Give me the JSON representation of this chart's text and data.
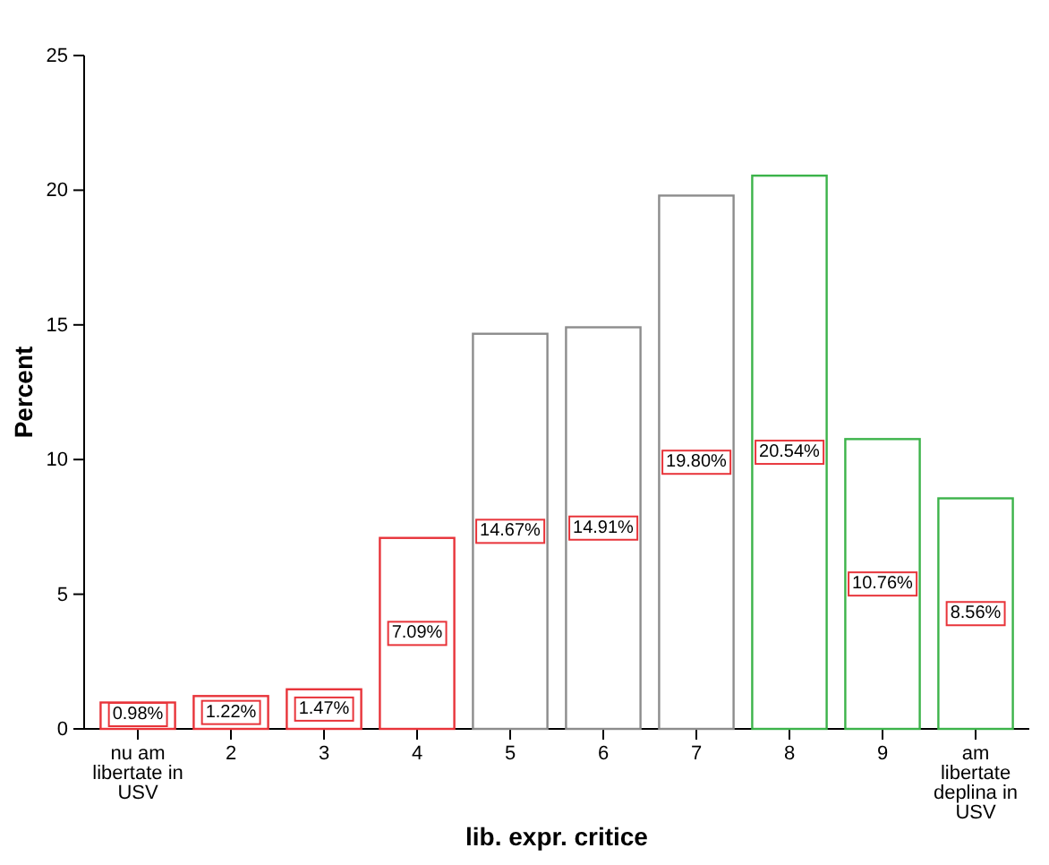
{
  "chart_data": {
    "type": "bar",
    "xlabel": "lib. expr. critice",
    "ylabel": "Percent",
    "categories": [
      "nu am libertate in USV",
      "2",
      "3",
      "4",
      "5",
      "6",
      "7",
      "8",
      "9",
      "am libertate deplina in USV"
    ],
    "values": [
      0.98,
      1.22,
      1.47,
      7.09,
      14.67,
      14.91,
      19.8,
      20.54,
      10.76,
      8.56
    ],
    "value_labels": [
      "0.98%",
      "1.22%",
      "1.47%",
      "7.09%",
      "14.67%",
      "14.91%",
      "19.80%",
      "20.54%",
      "10.76%",
      "8.56%"
    ],
    "colors": [
      "#e8343a",
      "#e8343a",
      "#e8343a",
      "#e8343a",
      "#8c8c8c",
      "#8c8c8c",
      "#8c8c8c",
      "#3cb34a",
      "#3cb34a",
      "#3cb34a"
    ],
    "ylim": [
      0,
      25
    ],
    "yticks": [
      0,
      5,
      10,
      15,
      20,
      25
    ]
  }
}
